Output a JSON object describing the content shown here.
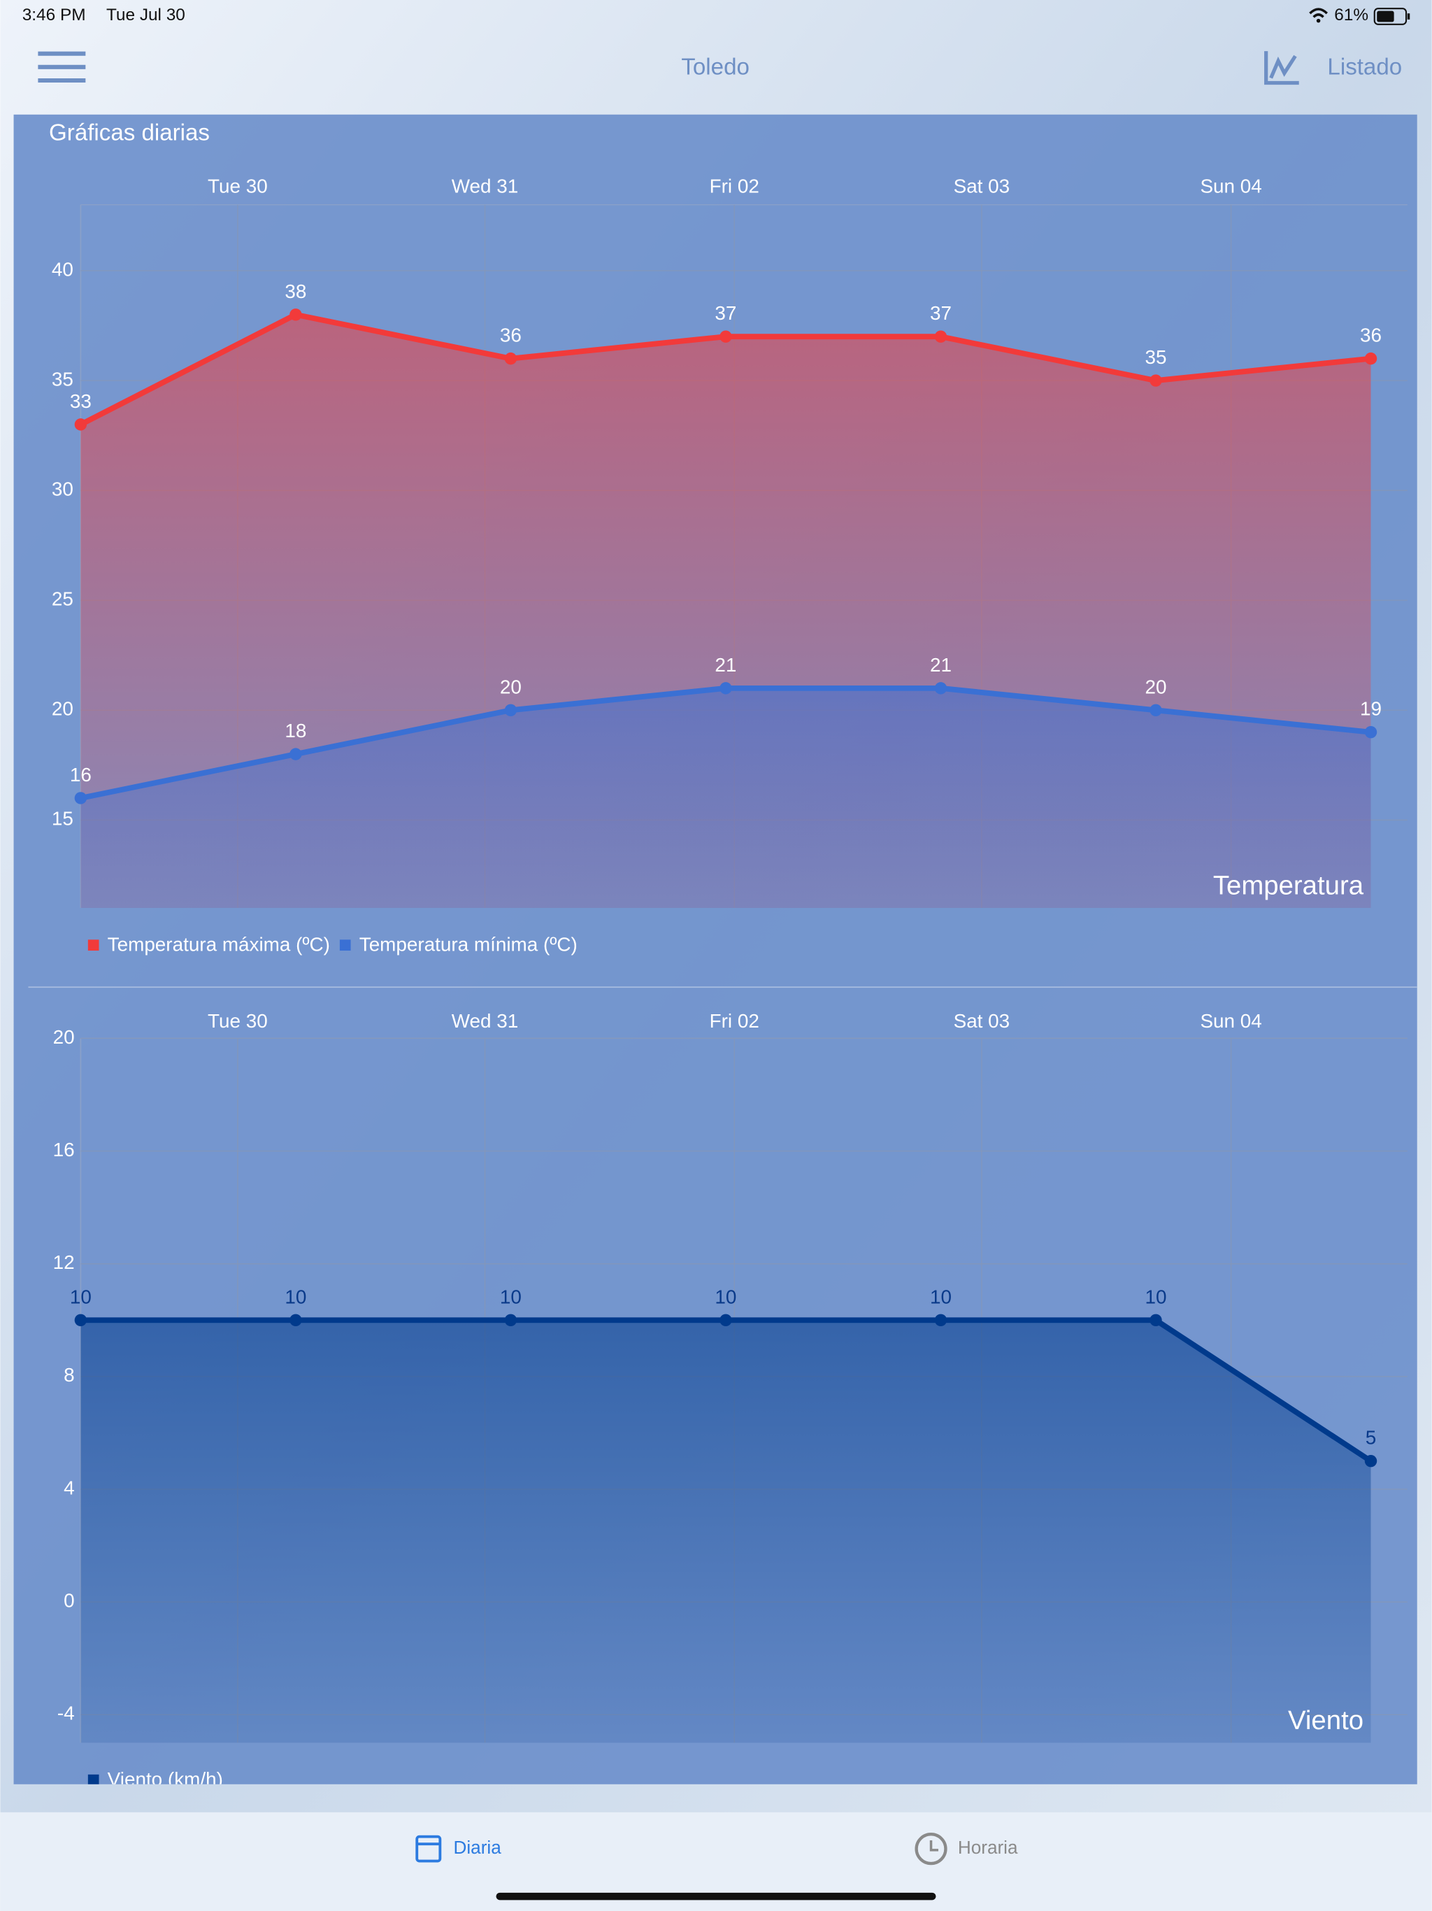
{
  "status": {
    "time": "3:46 PM",
    "date": "Tue Jul 30",
    "battery": "61%"
  },
  "nav": {
    "title": "Toledo",
    "action": "Listado"
  },
  "panel_title": "Gráficas diarias",
  "chart_data": [
    {
      "type": "line",
      "area": true,
      "grid": true,
      "x": [
        0,
        1,
        2,
        3,
        4,
        5,
        6
      ],
      "xlim": [
        0,
        6
      ],
      "xticks": [
        {
          "value": 0.73,
          "label": "Tue 30"
        },
        {
          "value": 1.88,
          "label": "Wed 31"
        },
        {
          "value": 3.04,
          "label": "Fri 02"
        },
        {
          "value": 4.19,
          "label": "Sat 03"
        },
        {
          "value": 5.35,
          "label": "Sun 04"
        }
      ],
      "ylim": [
        11,
        43
      ],
      "yticks": [
        15,
        20,
        25,
        30,
        35,
        40
      ],
      "annotation": "Temperatura",
      "series": [
        {
          "name": "Temperatura máxima (ºC)",
          "color": "#f23a3a",
          "values": [
            33,
            38,
            36,
            37,
            37,
            35,
            36
          ]
        },
        {
          "name": "Temperatura mínima (ºC)",
          "color": "#3a70d4",
          "values": [
            16,
            18,
            20,
            21,
            21,
            20,
            19
          ]
        }
      ]
    },
    {
      "type": "line",
      "area": true,
      "grid": true,
      "x": [
        0,
        1,
        2,
        3,
        4,
        5,
        6
      ],
      "xlim": [
        0,
        6
      ],
      "xticks": [
        {
          "value": 0.73,
          "label": "Tue 30"
        },
        {
          "value": 1.88,
          "label": "Wed 31"
        },
        {
          "value": 3.04,
          "label": "Fri 02"
        },
        {
          "value": 4.19,
          "label": "Sat 03"
        },
        {
          "value": 5.35,
          "label": "Sun 04"
        }
      ],
      "ylim": [
        -5,
        20
      ],
      "yticks": [
        -4,
        0,
        4,
        8,
        12,
        16,
        20
      ],
      "annotation": "Viento",
      "series": [
        {
          "name": "Viento (km/h)",
          "color": "#003a8c",
          "values": [
            10,
            10,
            10,
            10,
            10,
            10,
            5
          ]
        }
      ]
    }
  ],
  "tabs": [
    "Diaria",
    "Horaria"
  ]
}
